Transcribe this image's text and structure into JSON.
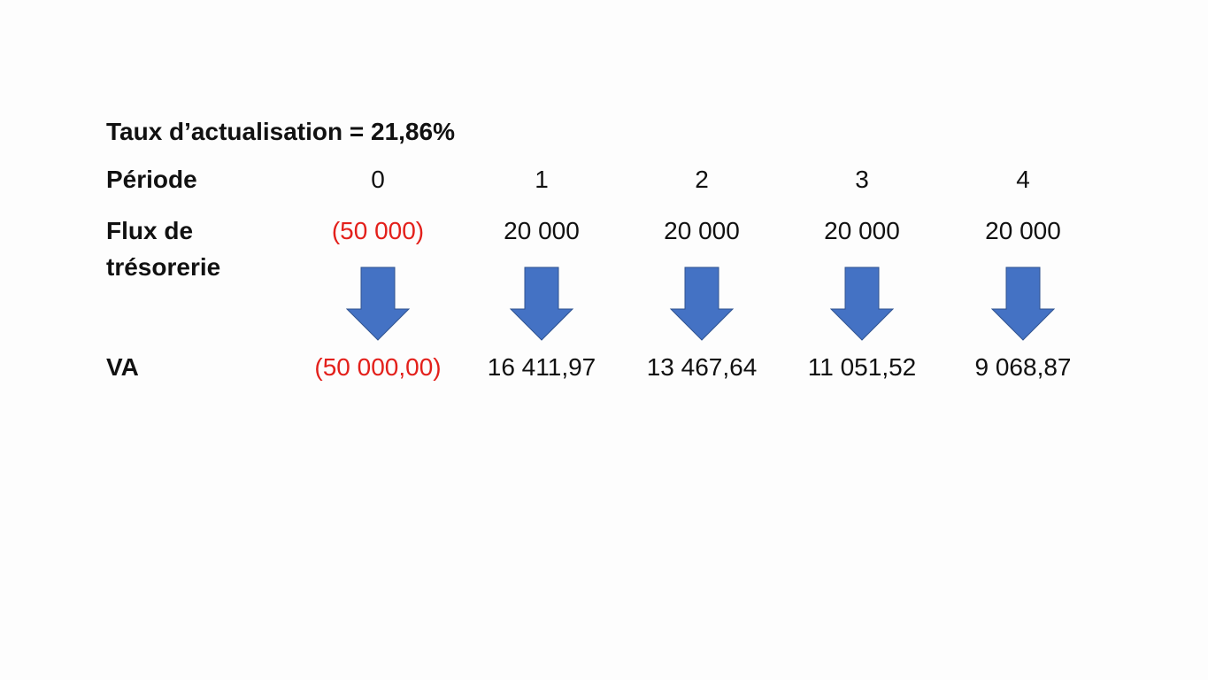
{
  "title": "Taux d’actualisation = 21,86%",
  "table": {
    "rows": [
      {
        "label": "Période",
        "cells": [
          "0",
          "1",
          "2",
          "3",
          "4"
        ]
      },
      {
        "label": "Flux de trésorerie",
        "cells": [
          "(50 000)",
          "20 000",
          "20 000",
          "20 000",
          "20 000"
        ]
      },
      {
        "label": "VA",
        "cells": [
          "(50 000,00)",
          "16 411,97",
          "13 467,64",
          "11 051,52",
          "9 068,87"
        ]
      }
    ]
  }
}
